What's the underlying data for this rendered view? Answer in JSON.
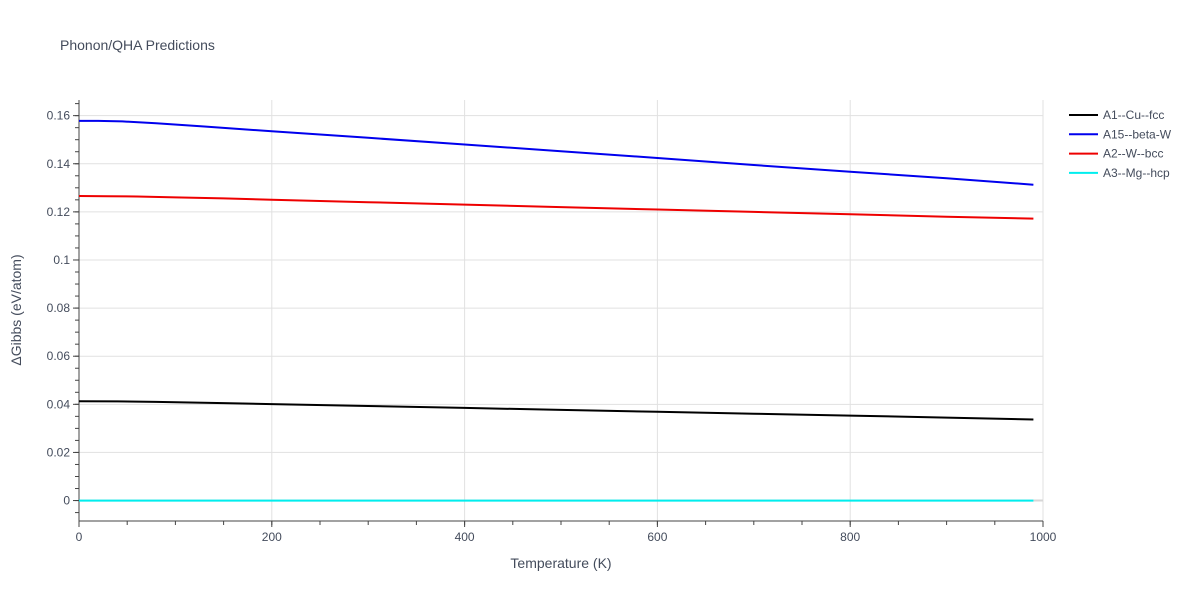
{
  "chart_data": {
    "type": "line",
    "title": "Phonon/QHA Predictions",
    "xlabel": "Temperature (K)",
    "ylabel": "ΔGibbs (eV/atom)",
    "xlim": [
      0,
      1000
    ],
    "ylim": [
      -0.0085,
      0.1665
    ],
    "xticks": [
      0,
      200,
      400,
      600,
      800,
      1000
    ],
    "xtick_labels": [
      "0",
      "200",
      "400",
      "600",
      "800",
      "1000"
    ],
    "yticks": [
      0,
      0.02,
      0.04,
      0.06,
      0.08,
      0.1,
      0.12,
      0.14,
      0.16
    ],
    "ytick_labels": [
      "0",
      "0.02",
      "0.04",
      "0.06",
      "0.08",
      "0.1",
      "0.12",
      "0.14",
      "0.16"
    ],
    "grid": true,
    "legend_position": "top-right",
    "series": [
      {
        "name": "A1--Cu--fcc",
        "color": "#000000",
        "x": [
          0,
          40,
          80,
          150,
          200,
          300,
          400,
          500,
          600,
          700,
          800,
          900,
          990
        ],
        "y": [
          0.0413,
          0.0412,
          0.041,
          0.0405,
          0.0401,
          0.0393,
          0.0385,
          0.0377,
          0.0369,
          0.0361,
          0.0353,
          0.0345,
          0.0337
        ]
      },
      {
        "name": "A15--beta-W",
        "color": "#0000ee",
        "x": [
          0,
          20,
          45,
          80,
          130,
          200,
          300,
          400,
          500,
          600,
          700,
          800,
          900,
          990
        ],
        "y": [
          0.1578,
          0.1578,
          0.1576,
          0.1568,
          0.1555,
          0.1535,
          0.1508,
          0.148,
          0.1452,
          0.1424,
          0.1395,
          0.1367,
          0.134,
          0.1313
        ]
      },
      {
        "name": "A2--W--bcc",
        "color": "#ee0000",
        "x": [
          0,
          30,
          60,
          100,
          150,
          200,
          300,
          400,
          500,
          600,
          700,
          800,
          900,
          990
        ],
        "y": [
          0.1266,
          0.1265,
          0.1264,
          0.126,
          0.1256,
          0.125,
          0.124,
          0.123,
          0.122,
          0.121,
          0.12,
          0.119,
          0.118,
          0.1172
        ]
      },
      {
        "name": "A3--Mg--hcp",
        "color": "#00eeee",
        "x": [
          0,
          990
        ],
        "y": [
          0,
          0
        ]
      }
    ]
  }
}
